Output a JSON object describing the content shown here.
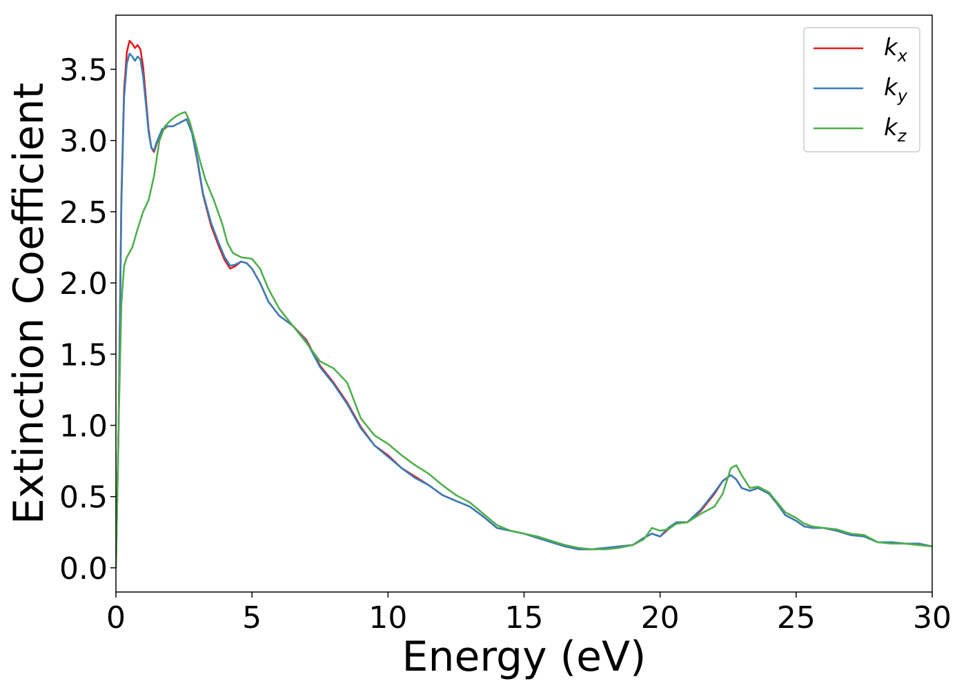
{
  "chart_data": {
    "type": "line",
    "title": "",
    "xlabel": "Energy (eV)",
    "ylabel": "Extinction Coefficient",
    "xlim": [
      0,
      30
    ],
    "ylim": [
      -0.17,
      3.88
    ],
    "xticks": [
      0,
      5,
      10,
      15,
      20,
      25,
      30
    ],
    "xtick_labels": [
      "0",
      "5",
      "10",
      "15",
      "20",
      "25",
      "30"
    ],
    "yticks": [
      0.0,
      0.5,
      1.0,
      1.5,
      2.0,
      2.5,
      3.0,
      3.5
    ],
    "ytick_labels": [
      "0.0",
      "0.5",
      "1.0",
      "1.5",
      "2.0",
      "2.5",
      "3.0",
      "3.5"
    ],
    "grid": false,
    "legend_position": "top-right",
    "series": [
      {
        "name": "k",
        "subscript": "x",
        "color": "#e41a1c",
        "x": [
          0,
          0.1,
          0.2,
          0.3,
          0.4,
          0.5,
          0.6,
          0.7,
          0.8,
          0.9,
          1.0,
          1.1,
          1.2,
          1.3,
          1.4,
          1.5,
          1.7,
          1.9,
          2.1,
          2.3,
          2.5,
          2.6,
          2.8,
          3.0,
          3.2,
          3.5,
          3.8,
          4.0,
          4.2,
          4.4,
          4.6,
          4.8,
          5.0,
          5.3,
          5.6,
          6.0,
          6.5,
          7.0,
          7.5,
          8.0,
          8.5,
          9.0,
          9.5,
          10.0,
          10.5,
          11.0,
          11.5,
          12.0,
          12.5,
          13.0,
          13.5,
          14.0,
          14.5,
          15.0,
          15.5,
          16.0,
          16.5,
          17.0,
          17.5,
          18.0,
          18.5,
          19.0,
          19.4,
          19.7,
          20.0,
          20.3,
          20.6,
          21.0,
          21.5,
          22.0,
          22.3,
          22.6,
          22.8,
          23.0,
          23.3,
          23.6,
          24.0,
          24.3,
          24.6,
          25.0,
          25.3,
          25.6,
          26.0,
          26.5,
          27.0,
          27.5,
          28.0,
          28.5,
          29.0,
          29.5,
          30.0
        ],
        "y": [
          0.0,
          1.0,
          2.6,
          3.35,
          3.62,
          3.7,
          3.68,
          3.65,
          3.67,
          3.64,
          3.52,
          3.3,
          3.08,
          2.95,
          2.92,
          2.98,
          3.07,
          3.1,
          3.1,
          3.12,
          3.14,
          3.15,
          3.05,
          2.85,
          2.62,
          2.4,
          2.25,
          2.16,
          2.1,
          2.12,
          2.15,
          2.14,
          2.1,
          2.0,
          1.87,
          1.77,
          1.7,
          1.6,
          1.42,
          1.3,
          1.16,
          0.99,
          0.86,
          0.79,
          0.7,
          0.64,
          0.58,
          0.51,
          0.47,
          0.43,
          0.36,
          0.28,
          0.26,
          0.24,
          0.21,
          0.18,
          0.15,
          0.13,
          0.13,
          0.14,
          0.15,
          0.16,
          0.21,
          0.24,
          0.22,
          0.27,
          0.32,
          0.32,
          0.4,
          0.52,
          0.61,
          0.65,
          0.62,
          0.56,
          0.54,
          0.56,
          0.52,
          0.45,
          0.37,
          0.33,
          0.29,
          0.28,
          0.28,
          0.26,
          0.23,
          0.22,
          0.18,
          0.18,
          0.17,
          0.17,
          0.15
        ]
      },
      {
        "name": "k",
        "subscript": "y",
        "color": "#377eb8",
        "x": [
          0,
          0.1,
          0.2,
          0.3,
          0.4,
          0.5,
          0.6,
          0.7,
          0.8,
          0.9,
          1.0,
          1.1,
          1.2,
          1.3,
          1.4,
          1.5,
          1.7,
          1.9,
          2.1,
          2.3,
          2.5,
          2.6,
          2.8,
          3.0,
          3.2,
          3.5,
          3.8,
          4.0,
          4.2,
          4.4,
          4.6,
          4.8,
          5.0,
          5.3,
          5.6,
          6.0,
          6.5,
          7.0,
          7.5,
          8.0,
          8.5,
          9.0,
          9.5,
          10.0,
          10.5,
          11.0,
          11.5,
          12.0,
          12.5,
          13.0,
          13.5,
          14.0,
          14.5,
          15.0,
          15.5,
          16.0,
          16.5,
          17.0,
          17.5,
          18.0,
          18.5,
          19.0,
          19.4,
          19.7,
          20.0,
          20.3,
          20.6,
          21.0,
          21.5,
          22.0,
          22.3,
          22.6,
          22.8,
          23.0,
          23.3,
          23.6,
          24.0,
          24.3,
          24.6,
          25.0,
          25.3,
          25.6,
          26.0,
          26.5,
          27.0,
          27.5,
          28.0,
          28.5,
          29.0,
          29.5,
          30.0
        ],
        "y": [
          0.0,
          0.98,
          2.55,
          3.3,
          3.54,
          3.61,
          3.59,
          3.56,
          3.59,
          3.57,
          3.45,
          3.26,
          3.06,
          2.95,
          2.93,
          2.99,
          3.08,
          3.1,
          3.1,
          3.12,
          3.14,
          3.15,
          3.05,
          2.86,
          2.63,
          2.42,
          2.27,
          2.18,
          2.12,
          2.13,
          2.15,
          2.14,
          2.1,
          2.0,
          1.87,
          1.77,
          1.7,
          1.59,
          1.41,
          1.29,
          1.15,
          0.98,
          0.86,
          0.78,
          0.7,
          0.63,
          0.58,
          0.51,
          0.47,
          0.43,
          0.36,
          0.28,
          0.26,
          0.24,
          0.21,
          0.18,
          0.15,
          0.13,
          0.13,
          0.14,
          0.15,
          0.16,
          0.21,
          0.24,
          0.22,
          0.28,
          0.32,
          0.32,
          0.41,
          0.53,
          0.61,
          0.65,
          0.62,
          0.56,
          0.54,
          0.56,
          0.52,
          0.45,
          0.37,
          0.33,
          0.29,
          0.28,
          0.28,
          0.26,
          0.23,
          0.22,
          0.18,
          0.18,
          0.17,
          0.17,
          0.15
        ]
      },
      {
        "name": "k",
        "subscript": "z",
        "color": "#4daf4a",
        "x": [
          0,
          0.1,
          0.2,
          0.3,
          0.4,
          0.6,
          0.8,
          1.0,
          1.2,
          1.4,
          1.6,
          1.8,
          2.0,
          2.2,
          2.4,
          2.55,
          2.7,
          2.9,
          3.1,
          3.3,
          3.6,
          3.9,
          4.1,
          4.3,
          4.6,
          5.0,
          5.3,
          5.6,
          6.0,
          6.5,
          7.0,
          7.5,
          8.0,
          8.5,
          9.0,
          9.5,
          10.0,
          10.5,
          11.0,
          11.5,
          12.0,
          12.5,
          13.0,
          13.5,
          14.0,
          14.5,
          15.0,
          15.5,
          16.0,
          16.5,
          17.0,
          17.5,
          18.0,
          18.5,
          19.0,
          19.4,
          19.7,
          20.0,
          20.3,
          20.6,
          21.0,
          21.5,
          22.0,
          22.3,
          22.6,
          22.8,
          23.0,
          23.3,
          23.6,
          24.0,
          24.3,
          24.6,
          25.0,
          25.3,
          25.6,
          26.0,
          26.5,
          27.0,
          27.5,
          28.0,
          28.5,
          29.0,
          29.5,
          30.0
        ],
        "y": [
          0.0,
          1.0,
          1.85,
          2.12,
          2.18,
          2.25,
          2.38,
          2.5,
          2.58,
          2.75,
          3.0,
          3.1,
          3.14,
          3.17,
          3.19,
          3.2,
          3.14,
          3.0,
          2.85,
          2.72,
          2.58,
          2.42,
          2.28,
          2.21,
          2.18,
          2.17,
          2.1,
          1.96,
          1.82,
          1.7,
          1.58,
          1.45,
          1.4,
          1.3,
          1.05,
          0.93,
          0.87,
          0.79,
          0.72,
          0.66,
          0.58,
          0.51,
          0.46,
          0.38,
          0.3,
          0.26,
          0.24,
          0.22,
          0.19,
          0.16,
          0.14,
          0.13,
          0.13,
          0.14,
          0.16,
          0.2,
          0.28,
          0.26,
          0.27,
          0.31,
          0.32,
          0.38,
          0.43,
          0.52,
          0.7,
          0.72,
          0.65,
          0.56,
          0.57,
          0.53,
          0.46,
          0.39,
          0.35,
          0.31,
          0.29,
          0.28,
          0.27,
          0.24,
          0.23,
          0.18,
          0.17,
          0.17,
          0.16,
          0.15
        ]
      }
    ]
  }
}
